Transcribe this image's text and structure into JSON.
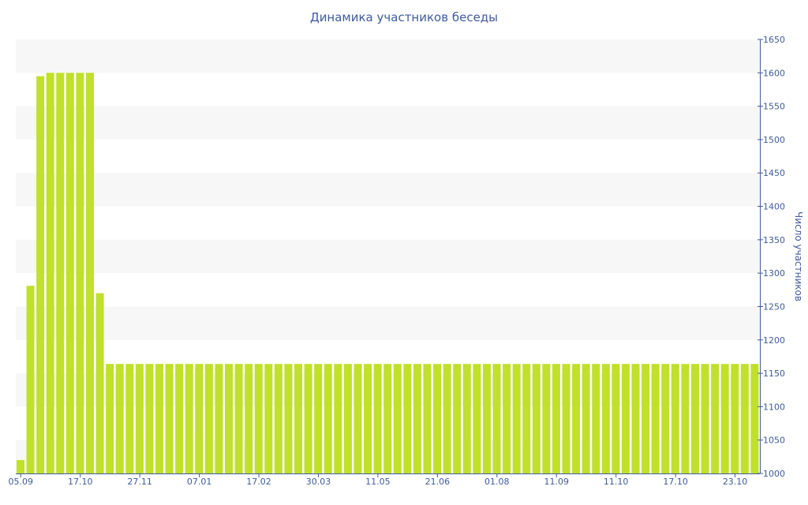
{
  "colors": {
    "bar": "#c0e02a",
    "axis": "#3e5a9c",
    "band": "#f7f7f7",
    "text": "#3e5a9c"
  },
  "chart_data": {
    "type": "bar",
    "title": "Динамика участников беседы",
    "ylabel": "Число участников",
    "xlabel": "",
    "y_axis_side": "right",
    "ylim": [
      1000,
      1650
    ],
    "y_ticks": [
      1000,
      1050,
      1100,
      1150,
      1200,
      1250,
      1300,
      1350,
      1400,
      1450,
      1500,
      1550,
      1600,
      1650
    ],
    "grid": "alternating horizontal bands",
    "legend": "none",
    "x_tick_labels": [
      {
        "label": "05.09",
        "index": 0
      },
      {
        "label": "17.10",
        "index": 6
      },
      {
        "label": "27.11",
        "index": 12
      },
      {
        "label": "07.01",
        "index": 18
      },
      {
        "label": "17.02",
        "index": 24
      },
      {
        "label": "30.03",
        "index": 30
      },
      {
        "label": "11.05",
        "index": 36
      },
      {
        "label": "21.06",
        "index": 42
      },
      {
        "label": "01.08",
        "index": 48
      },
      {
        "label": "11.09",
        "index": 54
      },
      {
        "label": "11.10",
        "index": 60
      },
      {
        "label": "17.10",
        "index": 66
      },
      {
        "label": "23.10",
        "index": 72
      }
    ],
    "values": [
      1020,
      1281,
      1595,
      1600,
      1600,
      1600,
      1600,
      1600,
      1270,
      1164,
      1164,
      1164,
      1164,
      1164,
      1164,
      1164,
      1164,
      1164,
      1164,
      1164,
      1164,
      1164,
      1164,
      1164,
      1164,
      1164,
      1164,
      1164,
      1164,
      1164,
      1164,
      1164,
      1164,
      1164,
      1164,
      1164,
      1164,
      1164,
      1164,
      1164,
      1164,
      1164,
      1164,
      1164,
      1164,
      1164,
      1164,
      1164,
      1164,
      1164,
      1164,
      1164,
      1164,
      1164,
      1164,
      1164,
      1164,
      1164,
      1164,
      1164,
      1164,
      1164,
      1164,
      1164,
      1164,
      1164,
      1164,
      1164,
      1164,
      1164,
      1164,
      1164,
      1164,
      1164,
      1164
    ]
  }
}
